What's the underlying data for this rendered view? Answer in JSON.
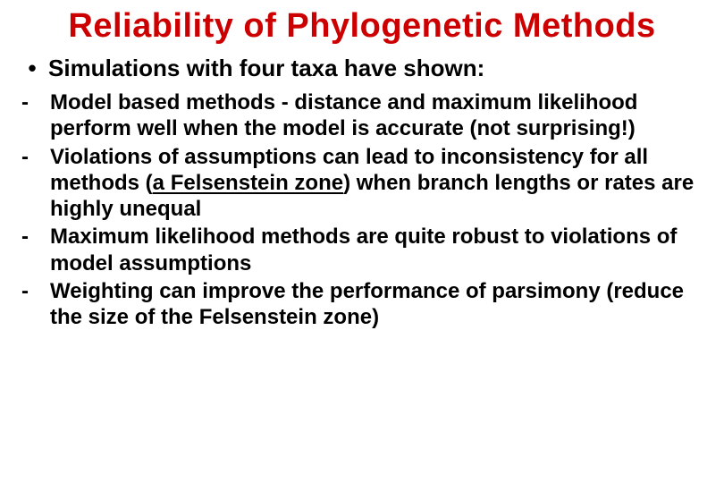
{
  "title": "Reliability of Phylogenetic Methods",
  "title_color": "#cc0000",
  "lead_bullet": "•",
  "lead_text": "Simulations with four taxa have shown:",
  "dash": "-",
  "items": {
    "i0": "Model based methods - distance and maximum likelihood perform well when the model is accurate (not surprising!)",
    "i1_a": "Violations of assumptions can lead to inconsistency for all methods (",
    "i1_u": "a Felsenstein zone",
    "i1_b": ") when branch lengths or rates are highly unequal",
    "i2": "Maximum likelihood methods are quite robust to violations of model assumptions",
    "i3": "Weighting can improve the performance of parsimony (reduce the size of the Felsenstein zone)"
  },
  "colors": {
    "text": "#000000",
    "background": "#ffffff"
  },
  "fonts": {
    "family": "Comic Sans MS",
    "title_size_pt": 38,
    "lead_size_pt": 26,
    "body_size_pt": 24,
    "weight": "bold"
  }
}
